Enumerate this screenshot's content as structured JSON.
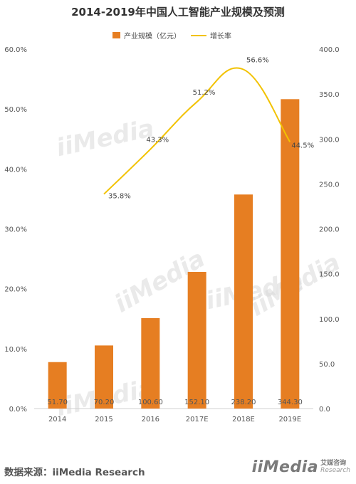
{
  "title": "2014-2019年中国人工智能产业规模及预测",
  "legend": {
    "bar_label": "产业规模（亿元）",
    "line_label": "增长率"
  },
  "colors": {
    "bar": "#E67E22",
    "line": "#F2C200",
    "axis_text": "#555555",
    "watermark": "#d9d9d9"
  },
  "chart_data": {
    "type": "bar",
    "categories": [
      "2014",
      "2015",
      "2016",
      "2017E",
      "2018E",
      "2019E"
    ],
    "series": [
      {
        "name": "产业规模（亿元）",
        "type": "bar",
        "axis": "right",
        "values": [
          51.7,
          70.2,
          100.6,
          152.1,
          238.2,
          344.3
        ],
        "labels": [
          "51.70",
          "70.20",
          "100.60",
          "152.10",
          "238.20",
          "344.30"
        ]
      },
      {
        "name": "增长率",
        "type": "line",
        "axis": "left",
        "values": [
          null,
          35.8,
          43.3,
          51.2,
          56.6,
          44.5
        ],
        "labels": [
          "",
          "35.8%",
          "43.3%",
          "51.2%",
          "56.6%",
          "44.5%"
        ]
      }
    ],
    "y_left": {
      "range": [
        0,
        60
      ],
      "ticks": [
        "0.0%",
        "10.0%",
        "20.0%",
        "30.0%",
        "40.0%",
        "50.0%",
        "60.0%"
      ]
    },
    "y_right": {
      "range": [
        0,
        400
      ],
      "ticks": [
        "0.0",
        "50.0",
        "100.0",
        "150.0",
        "200.0",
        "250.0",
        "300.0",
        "350.0",
        "400.0"
      ]
    },
    "grid": false,
    "legend_position": "top"
  },
  "watermark_text": "iiMedia",
  "watermark_sub": "艾媒咨询 Research",
  "source_text": "数据来源：iiMedia Research",
  "logo": {
    "main": "iiMedia",
    "cn": "艾媒咨询",
    "en": "Research"
  }
}
